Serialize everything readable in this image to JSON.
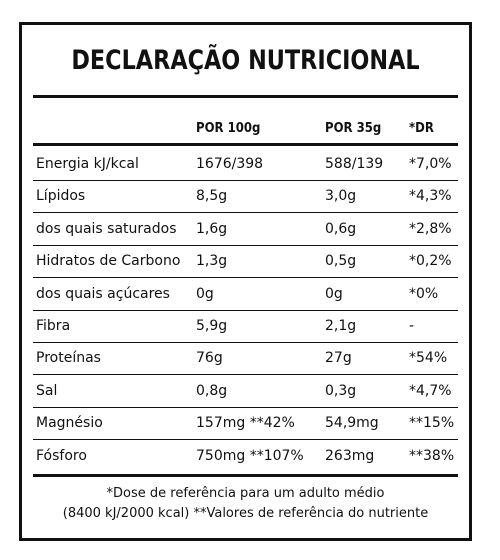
{
  "title": "DECLARAÇÃO NUTRICIONAL",
  "headers": [
    "POR 100g",
    "POR 35g",
    "*DR"
  ],
  "rows": [
    {
      "name": "Energia kJ/kcal",
      "per100": "1676/398",
      "per35": "588/139",
      "dr": "*7,0%"
    },
    {
      "name": "Lípidos",
      "per100": "8,5g",
      "per35": "3,0g",
      "dr": "*4,3%"
    },
    {
      "name": "dos quais saturados",
      "per100": "1,6g",
      "per35": "0,6g",
      "dr": "*2,8%"
    },
    {
      "name": "Hidratos de Carbono",
      "per100": "1,3g",
      "per35": "0,5g",
      "dr": "*0,2%"
    },
    {
      "name": "dos quais açúcares",
      "per100": "0g",
      "per35": "0g",
      "dr": "*0%"
    },
    {
      "name": "Fibra",
      "per100": "5,9g",
      "per35": "2,1g",
      "dr": "-"
    },
    {
      "name": "Proteínas",
      "per100": "76g",
      "per35": "27g",
      "dr": "*54%"
    },
    {
      "name": "Sal",
      "per100": "0,8g",
      "per35": "0,3g",
      "dr": "*4,7%"
    },
    {
      "name": "Magnésio",
      "per100": "157mg **42%",
      "per35": "54,9mg",
      "dr": "**15%"
    },
    {
      "name": "Fósforo",
      "per100": "750mg **107%",
      "per35": "263mg",
      "dr": "**38%"
    }
  ],
  "footer": {
    "line1": "*Dose de referência para um adulto médio",
    "line2": "(8400 kJ/2000 kcal) **Valores de referência do nutriente"
  }
}
